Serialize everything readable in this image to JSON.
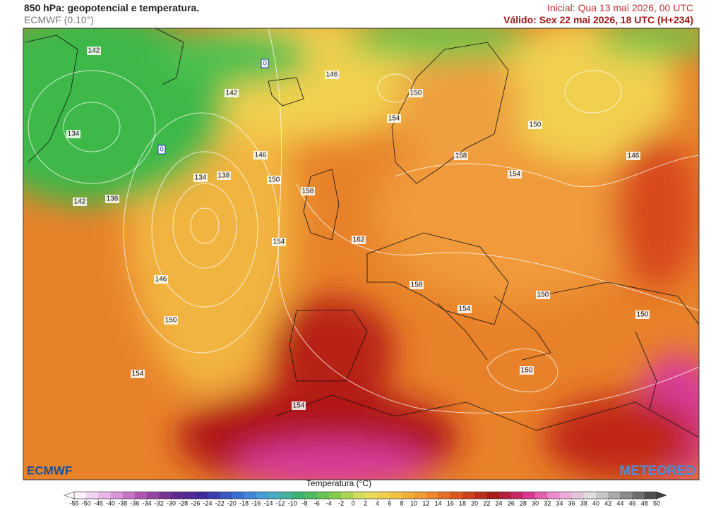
{
  "header": {
    "title": "850 hPa: geopotencial e temperatura.",
    "model": "ECMWF (0.10°)",
    "initial": "Inicial: Qua 13 mai 2026, 00 UTC",
    "valid": "Válido: Sex 22 mai 2026, 18 UTC (H+234)"
  },
  "map": {
    "contour_labels": [
      "142",
      "134",
      "142",
      "146",
      "150",
      "154",
      "158",
      "154",
      "150",
      "146",
      "146",
      "150",
      "138",
      "134",
      "142",
      "138",
      "158",
      "162",
      "154",
      "146",
      "150",
      "154",
      "154",
      "158",
      "154",
      "150",
      "150",
      "150"
    ],
    "isotherm_labels": [
      "0",
      "0"
    ],
    "logo_left": "ECMWF",
    "logo_right": "METEORED"
  },
  "colorbar": {
    "label": "Temperatura (°C)",
    "ticks": [
      -55,
      -50,
      -45,
      -40,
      -38,
      -36,
      -34,
      -32,
      -30,
      -28,
      -26,
      -24,
      -22,
      -20,
      -18,
      -16,
      -14,
      -12,
      -10,
      -8,
      -6,
      -4,
      -2,
      0,
      2,
      4,
      6,
      8,
      10,
      12,
      14,
      16,
      18,
      20,
      22,
      24,
      26,
      28,
      30,
      32,
      34,
      36,
      38,
      40,
      42,
      44,
      46,
      48,
      50
    ],
    "colors": [
      "#ffffff",
      "#e9b0e9",
      "#b55ab5",
      "#6a2a8a",
      "#3a2a9a",
      "#3a6ad0",
      "#4aaad8",
      "#3cb46a",
      "#7acb4a",
      "#e8e060",
      "#f2c040",
      "#ee8a2a",
      "#d84a1e",
      "#a01818",
      "#d8308a",
      "#f0a0d8",
      "#e0e0e0",
      "#909090",
      "#404040"
    ]
  }
}
